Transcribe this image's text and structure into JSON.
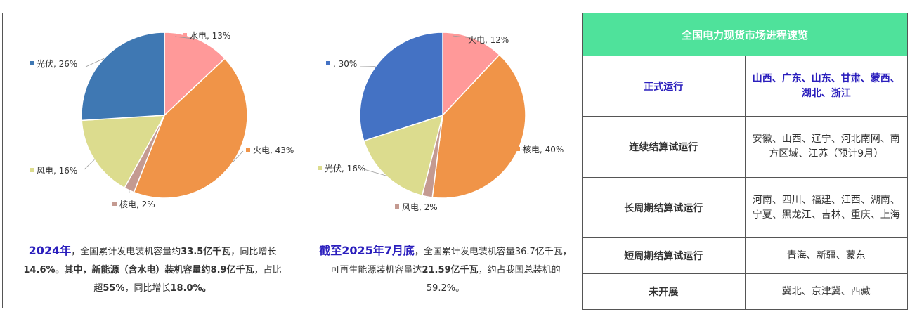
{
  "chart_data": [
    {
      "type": "pie",
      "slices": [
        {
          "name": "水电",
          "value": 13,
          "label": "水电, 13%",
          "color": "#ff9999"
        },
        {
          "name": "火电",
          "value": 43,
          "label": "火电, 43%",
          "color": "#f09448"
        },
        {
          "name": "核电",
          "value": 2,
          "label": "核电, 2%",
          "color": "#c49a91"
        },
        {
          "name": "风电",
          "value": 16,
          "label": "风电, 16%",
          "color": "#dcdc8e"
        },
        {
          "name": "光伏",
          "value": 26,
          "label": "光伏, 26%",
          "color": "#3f78b3"
        }
      ]
    },
    {
      "type": "pie",
      "slices": [
        {
          "name": "火电",
          "value": 12,
          "label": "火电, 12%",
          "color": "#ff9999"
        },
        {
          "name": "核电",
          "value": 40,
          "label": "核电, 40%",
          "color": "#f09448"
        },
        {
          "name": "风电",
          "value": 2,
          "label": "风电, 2%",
          "color": "#c49a91"
        },
        {
          "name": "光伏",
          "value": 16,
          "label": "光伏, 16%",
          "color": "#dcdc8e"
        },
        {
          "name": "",
          "value": 30,
          "label": ", 30%",
          "color": "#4472c4"
        }
      ]
    }
  ],
  "captions": {
    "left": {
      "year": "2024年",
      "t1": "，全国累计发电装机容量约",
      "b1": "33.5亿千瓦",
      "t2": "，同比增长",
      "b2": "14.6%。其中，新能源（含水电）装机容量约",
      "b3": "8.9亿千瓦",
      "t3": "，占比超",
      "b4": "55%",
      "t4": "，同比增长",
      "b5": "18.0%。"
    },
    "right": {
      "date": "截至2025年7月底",
      "t1": "，全国累计发电装机容量36.7亿千瓦，可再生能源装机容量达",
      "b1": "21.59亿千瓦",
      "t2": "，约占我国总装机的59.2%。"
    }
  },
  "progress_table": {
    "title": "全国电力现货市场进程速览",
    "rows": [
      {
        "stage": "正式运行",
        "regions": "山西、广东、山东、甘肃、蒙西、湖北、浙江"
      },
      {
        "stage": "连续结算试运行",
        "regions": "安徽、山西、辽宁、河北南网、南方区域、江苏（预计9月）"
      },
      {
        "stage": "长周期结算试运行",
        "regions": "河南、四川、福建、江西、湖南、宁夏、黑龙江、吉林、重庆、上海"
      },
      {
        "stage": "短周期结算试运行",
        "regions": "青海、新疆、蒙东"
      },
      {
        "stage": "未开展",
        "regions": "冀北、京津冀、西藏"
      }
    ]
  },
  "colors": {
    "header_bg": "#4fe29b",
    "highlight_text": "#2b1fbd"
  }
}
